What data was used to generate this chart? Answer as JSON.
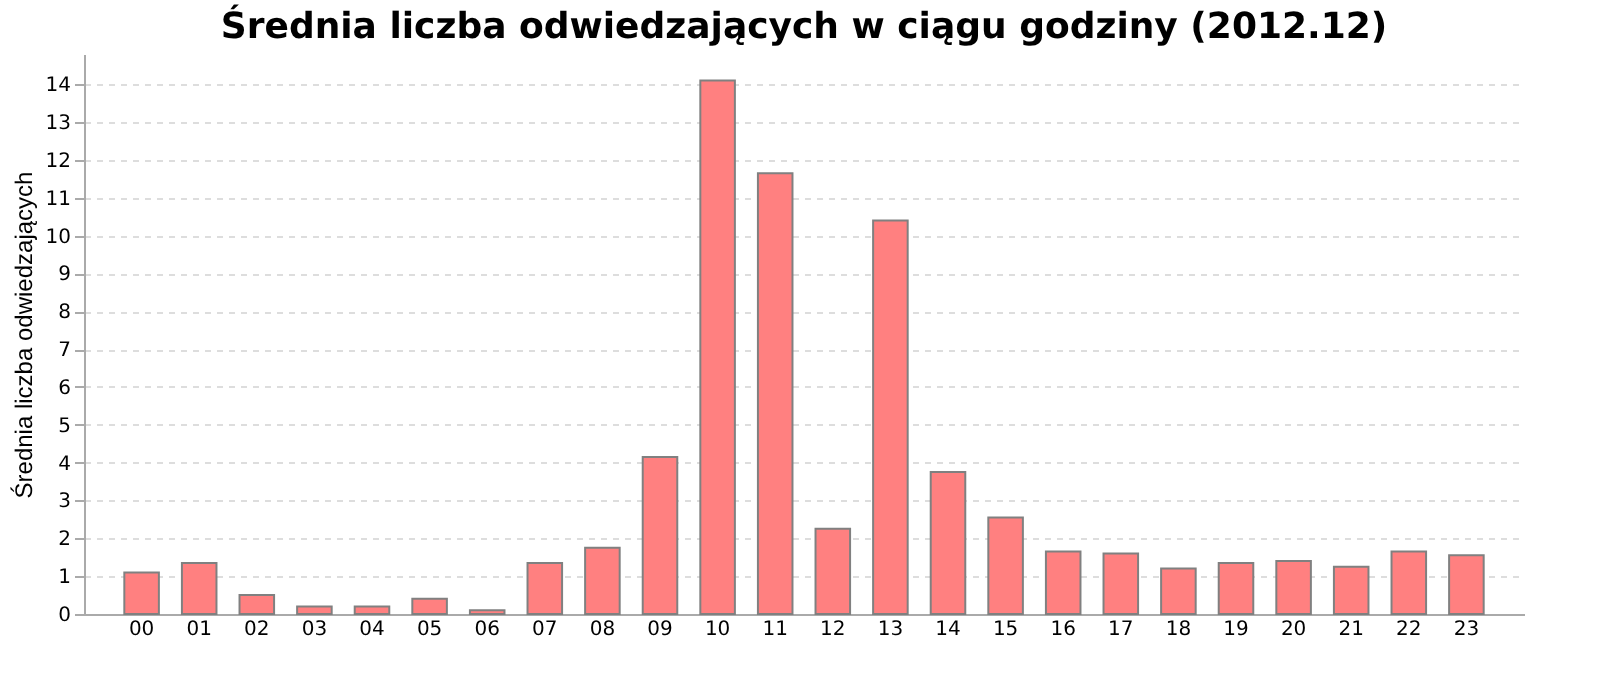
{
  "chart_data": {
    "type": "bar",
    "title": "Średnia liczba odwiedzających w ciągu godziny (2012.12)",
    "ylabel": "Średnia liczba odwiedzających",
    "categories": [
      "00",
      "01",
      "02",
      "03",
      "04",
      "05",
      "06",
      "07",
      "08",
      "09",
      "10",
      "11",
      "12",
      "13",
      "14",
      "15",
      "16",
      "17",
      "18",
      "19",
      "20",
      "21",
      "22",
      "23"
    ],
    "values": [
      1.1,
      1.35,
      0.5,
      0.2,
      0.2,
      0.4,
      0.1,
      1.35,
      1.75,
      4.15,
      14.1,
      11.65,
      2.25,
      10.4,
      3.75,
      2.55,
      1.65,
      1.6,
      1.2,
      1.35,
      1.4,
      1.25,
      1.65,
      1.55
    ],
    "color": "#ff8080",
    "ylim": [
      0,
      14.8
    ],
    "yticks": [
      0,
      1,
      2,
      3,
      4,
      5,
      6,
      7,
      8,
      9,
      10,
      11,
      12,
      13,
      14
    ],
    "grid": "y"
  }
}
